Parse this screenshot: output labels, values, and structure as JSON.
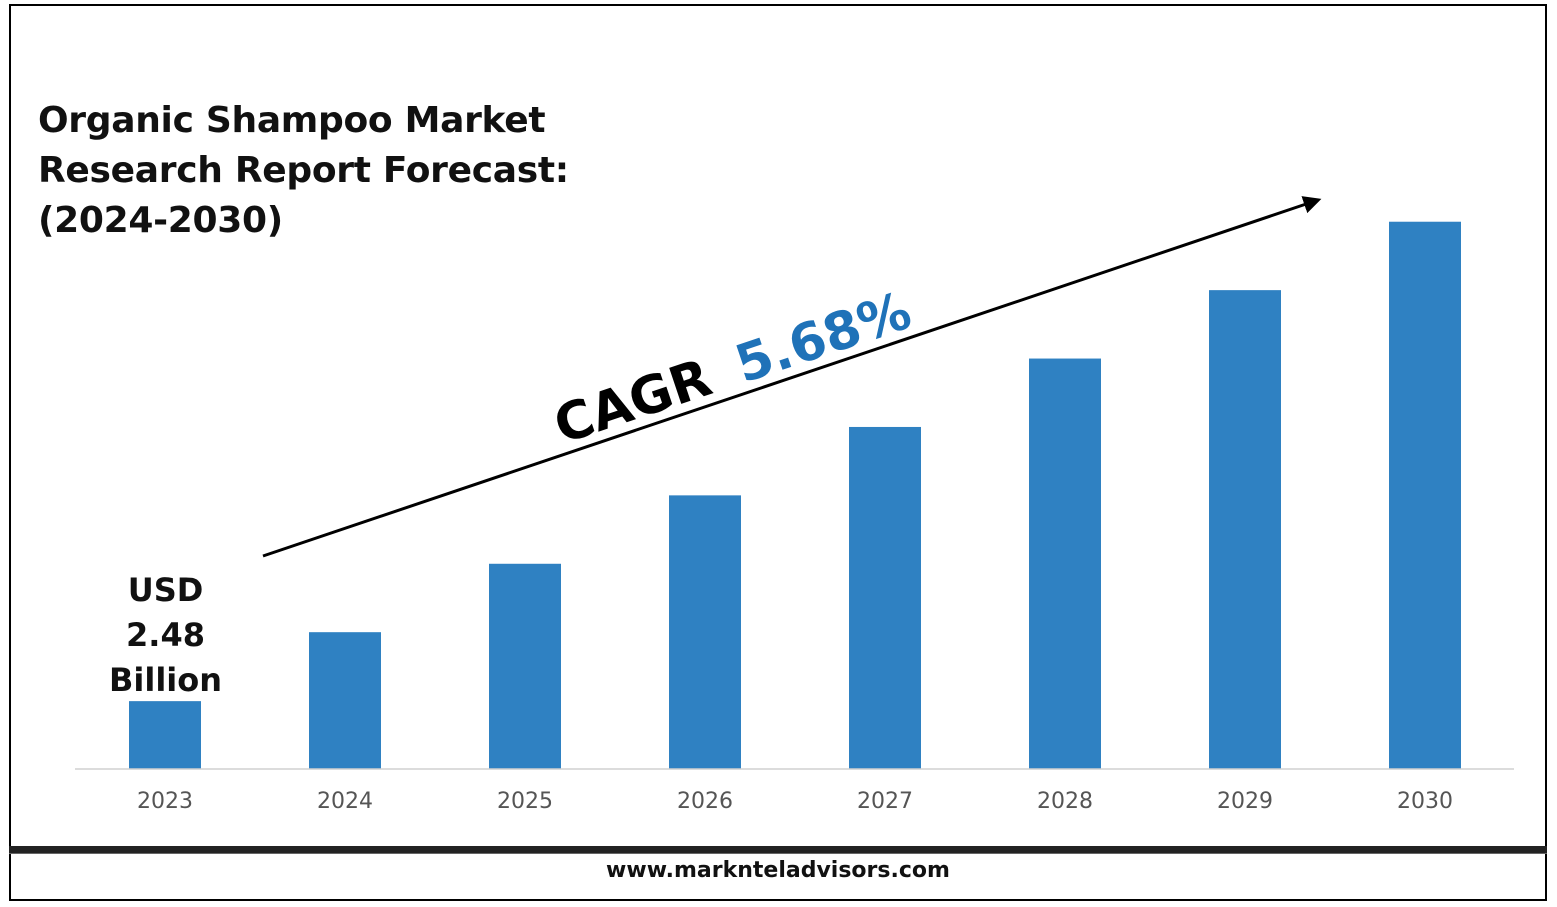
{
  "chart_data": {
    "type": "bar",
    "title": "Organic Shampoo Market Research Report Forecast: (2024-2030)",
    "title_lines": [
      "Organic Shampoo Market",
      "Research Report Forecast:",
      "(2024-2030)"
    ],
    "categories": [
      "2023",
      "2024",
      "2025",
      "2026",
      "2027",
      "2028",
      "2029",
      "2030"
    ],
    "values": [
      2.48,
      5.0,
      7.5,
      10.0,
      12.5,
      15.0,
      17.5,
      20.0
    ],
    "xlabel": "",
    "ylabel": "",
    "ylim": [
      0,
      22
    ],
    "grid": false,
    "bar_color": "#2f81c2",
    "first_label_lines": [
      "USD",
      "2.48",
      "Billion"
    ],
    "annotation": {
      "cagr_label": "CAGR",
      "cagr_value": "5.68%",
      "cagr_value_color": "#1f72b8"
    }
  },
  "footer": {
    "website": "www.marknteladvisors.com"
  }
}
